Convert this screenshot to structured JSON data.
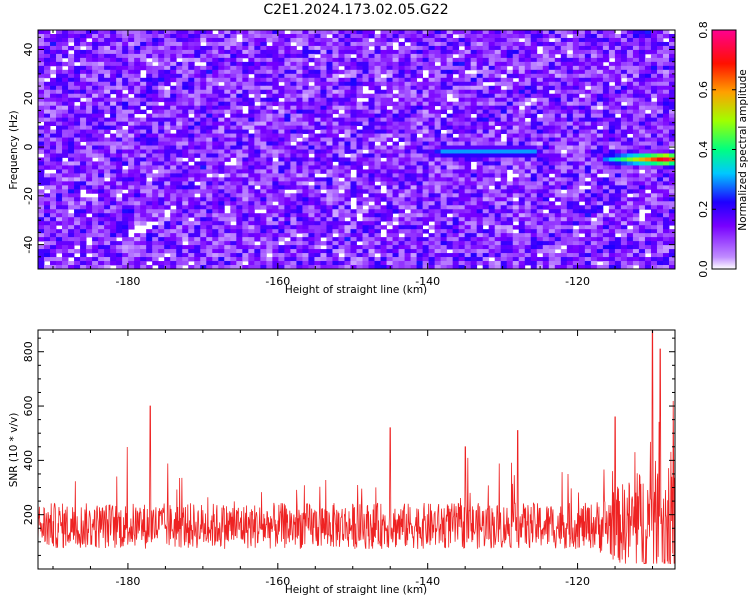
{
  "title": "C2E1.2024.173.02.05.G22",
  "chart_data": [
    {
      "type": "heatmap",
      "xlabel": "Height of straight line (km)",
      "ylabel": "Frequency (Hz)",
      "xlim": [
        -192,
        -107
      ],
      "ylim": [
        -50,
        48
      ],
      "x_ticks": [
        -180,
        -160,
        -140,
        -120
      ],
      "x_tick_labels": [
        "-180",
        "-160",
        "-140",
        "-120"
      ],
      "y_ticks": [
        -40,
        -20,
        0,
        20,
        40
      ],
      "y_tick_labels": [
        "-40",
        "-20",
        "0",
        "20",
        "40"
      ],
      "colorbar": {
        "label": "Normalized spectral amplitude",
        "range": [
          0.0,
          0.8
        ],
        "ticks": [
          0.0,
          0.2,
          0.4,
          0.6,
          0.8
        ],
        "tick_labels": [
          "0.0",
          "0.2",
          "0.4",
          "0.6",
          "0.8"
        ],
        "colormap": [
          "#ffffff",
          "#a000ff",
          "#2a00ff",
          "#00e0ff",
          "#00ff40",
          "#c8ff00",
          "#ff8000",
          "#ff0000",
          "#ff0090"
        ]
      },
      "features": [
        {
          "x_range": [
            -138,
            -126
          ],
          "y": -2,
          "peak": 0.3
        },
        {
          "x_range": [
            -116,
            -108
          ],
          "y": -5,
          "peak": 0.75
        },
        {
          "x": -180,
          "y": -26,
          "peak": 0.25
        }
      ],
      "grid": false
    },
    {
      "type": "line",
      "xlabel": "Height of straight line (km)",
      "ylabel": "SNR (10 * v/v)",
      "xlim": [
        -192,
        -107
      ],
      "ylim": [
        0,
        880
      ],
      "x_ticks": [
        -180,
        -160,
        -140,
        -120
      ],
      "x_tick_labels": [
        "-180",
        "-160",
        "-140",
        "-120"
      ],
      "y_ticks": [
        200,
        400,
        600,
        800
      ],
      "y_tick_labels": [
        "200",
        "400",
        "600",
        "800"
      ],
      "color": "#ee2222",
      "baseline": 150,
      "noise_range": [
        20,
        460
      ],
      "peaks": [
        {
          "x": -177,
          "y": 600
        },
        {
          "x": -145,
          "y": 520
        },
        {
          "x": -135,
          "y": 450
        },
        {
          "x": -128,
          "y": 510
        },
        {
          "x": -115,
          "y": 560
        },
        {
          "x": -110,
          "y": 880
        },
        {
          "x": -109,
          "y": 810
        }
      ],
      "grid": false
    }
  ]
}
